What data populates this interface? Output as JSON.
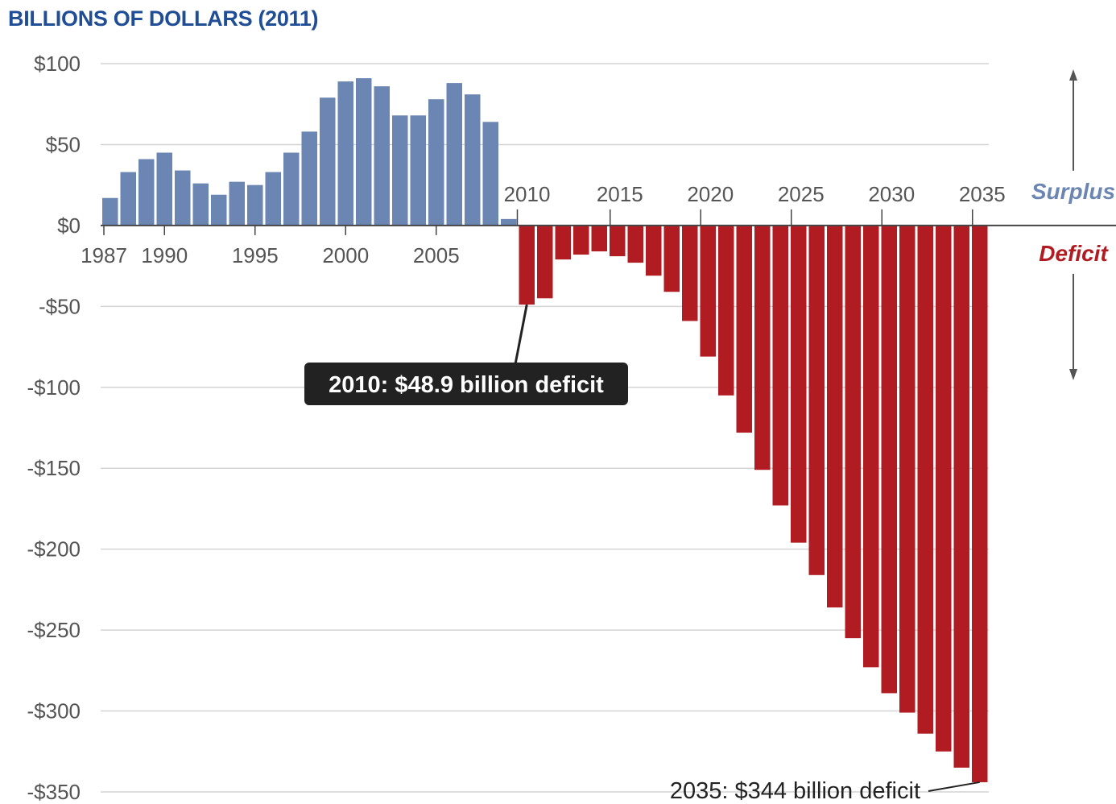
{
  "chart_data": {
    "type": "bar",
    "title": "BILLIONS OF DOLLARS (2011)",
    "title_color": "#1f4e96",
    "surplus_color": "#6b86b3",
    "deficit_color": "#b01c22",
    "years": [
      1987,
      1988,
      1989,
      1990,
      1991,
      1992,
      1993,
      1994,
      1995,
      1996,
      1997,
      1998,
      1999,
      2000,
      2001,
      2002,
      2003,
      2004,
      2005,
      2006,
      2007,
      2008,
      2009,
      2010,
      2011,
      2012,
      2013,
      2014,
      2015,
      2016,
      2017,
      2018,
      2019,
      2020,
      2021,
      2022,
      2023,
      2024,
      2025,
      2026,
      2027,
      2028,
      2029,
      2030,
      2031,
      2032,
      2033,
      2034,
      2035
    ],
    "values": [
      17,
      33,
      41,
      45,
      34,
      26,
      19,
      27,
      25,
      33,
      45,
      58,
      79,
      89,
      91,
      86,
      68,
      68,
      78,
      88,
      81,
      64,
      4,
      -48.9,
      -45,
      -21,
      -18,
      -16,
      -19,
      -23,
      -31,
      -41,
      -59,
      -81,
      -105,
      -128,
      -151,
      -173,
      -196,
      -216,
      -236,
      -255,
      -273,
      -289,
      -301,
      -314,
      -325,
      -335,
      -344
    ],
    "y_ticks": [
      {
        "value": 100,
        "label": "$100"
      },
      {
        "value": 50,
        "label": "$50"
      },
      {
        "value": 0,
        "label": "$0"
      },
      {
        "value": -50,
        "label": "-$50"
      },
      {
        "value": -100,
        "label": "-$100"
      },
      {
        "value": -150,
        "label": "-$150"
      },
      {
        "value": -200,
        "label": "-$200"
      },
      {
        "value": -250,
        "label": "-$250"
      },
      {
        "value": -300,
        "label": "-$300"
      },
      {
        "value": -350,
        "label": "-$350"
      }
    ],
    "ylim": [
      -350,
      100
    ],
    "x_ticks_below": [
      {
        "year": 1987,
        "label": "1987"
      },
      {
        "year": 1990,
        "label": "1990"
      },
      {
        "year": 1995,
        "label": "1995"
      },
      {
        "year": 2000,
        "label": "2000"
      },
      {
        "year": 2005,
        "label": "2005"
      }
    ],
    "x_ticks_above": [
      {
        "year": 2010,
        "label": "2010"
      },
      {
        "year": 2015,
        "label": "2015"
      },
      {
        "year": 2020,
        "label": "2020"
      },
      {
        "year": 2025,
        "label": "2025"
      },
      {
        "year": 2030,
        "label": "2030"
      },
      {
        "year": 2035,
        "label": "2035"
      }
    ],
    "surplus_label": "Surplus",
    "deficit_label": "Deficit",
    "annotations": [
      {
        "year": 2010,
        "value": -48.9,
        "text": "2010: $48.9 billion deficit",
        "style": "box"
      },
      {
        "year": 2035,
        "value": -344,
        "text": "2035: $344 billion deficit",
        "style": "plain"
      }
    ],
    "grid": true
  }
}
